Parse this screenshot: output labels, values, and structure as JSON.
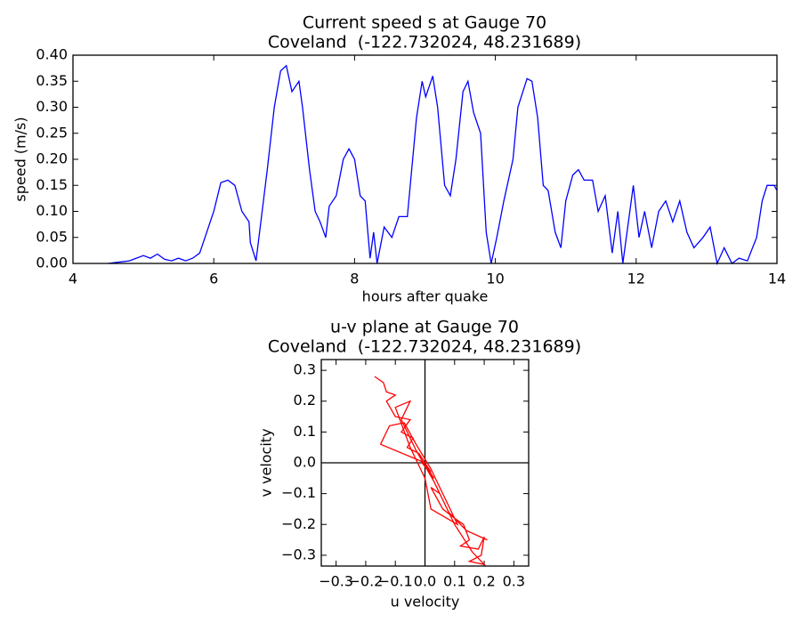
{
  "chart_data": [
    {
      "type": "line",
      "title": "Current speed s at Gauge 70",
      "subtitle": "Coveland  (-122.732024, 48.231689)",
      "x_label": "hours after quake",
      "y_label": "speed (m/s)",
      "color": "#0000ff",
      "xlim": [
        4,
        14
      ],
      "ylim": [
        0,
        0.4
      ],
      "xticks": [
        4,
        6,
        8,
        10,
        12,
        14
      ],
      "yticks": [
        {
          "value": 0,
          "label": "0.00"
        },
        0.05,
        {
          "value": 0.1,
          "label": "0.10"
        },
        0.15,
        {
          "value": 0.2,
          "label": "0.20"
        },
        0.25,
        {
          "value": 0.3,
          "label": "0.30"
        },
        0.35,
        {
          "value": 0.4,
          "label": "0.40"
        }
      ],
      "x": [
        4.5,
        4.8,
        4.9,
        5.0,
        5.1,
        5.2,
        5.3,
        5.4,
        5.5,
        5.6,
        5.7,
        5.8,
        5.9,
        6.0,
        6.1,
        6.2,
        6.3,
        6.4,
        6.5,
        6.52,
        6.6,
        6.76,
        6.86,
        6.95,
        7.03,
        7.11,
        7.21,
        7.26,
        7.36,
        7.44,
        7.51,
        7.59,
        7.64,
        7.74,
        7.84,
        7.92,
        8.0,
        8.08,
        8.15,
        8.22,
        8.27,
        8.32,
        8.42,
        8.53,
        8.63,
        8.75,
        8.88,
        8.96,
        9.01,
        9.11,
        9.18,
        9.28,
        9.36,
        9.44,
        9.54,
        9.61,
        9.69,
        9.79,
        9.87,
        9.94,
        10.02,
        10.12,
        10.25,
        10.32,
        10.45,
        10.52,
        10.6,
        10.68,
        10.75,
        10.85,
        10.93,
        11.0,
        11.1,
        11.18,
        11.26,
        11.38,
        11.46,
        11.56,
        11.66,
        11.74,
        11.81,
        11.89,
        11.96,
        12.04,
        12.12,
        12.22,
        12.32,
        12.42,
        12.52,
        12.62,
        12.72,
        12.82,
        12.95,
        13.05,
        13.15,
        13.25,
        13.36,
        13.46,
        13.58,
        13.71,
        13.79,
        13.86,
        13.96,
        14.0
      ],
      "values": [
        0,
        0.005,
        0.01,
        0.015,
        0.01,
        0.018,
        0.008,
        0.005,
        0.01,
        0.005,
        0.01,
        0.02,
        0.06,
        0.1,
        0.155,
        0.16,
        0.15,
        0.1,
        0.08,
        0.04,
        0.005,
        0.18,
        0.3,
        0.37,
        0.38,
        0.33,
        0.35,
        0.3,
        0.18,
        0.1,
        0.08,
        0.05,
        0.11,
        0.13,
        0.2,
        0.22,
        0.2,
        0.13,
        0.12,
        0.01,
        0.06,
        0.0,
        0.07,
        0.05,
        0.09,
        0.09,
        0.28,
        0.35,
        0.32,
        0.36,
        0.3,
        0.15,
        0.13,
        0.2,
        0.33,
        0.35,
        0.29,
        0.25,
        0.06,
        0.0,
        0.05,
        0.12,
        0.2,
        0.3,
        0.355,
        0.35,
        0.28,
        0.15,
        0.14,
        0.06,
        0.03,
        0.12,
        0.17,
        0.18,
        0.16,
        0.16,
        0.1,
        0.13,
        0.02,
        0.1,
        0.0,
        0.08,
        0.15,
        0.05,
        0.1,
        0.03,
        0.1,
        0.12,
        0.08,
        0.12,
        0.06,
        0.03,
        0.05,
        0.07,
        0.0,
        0.03,
        0.0,
        0.01,
        0.005,
        0.05,
        0.12,
        0.15,
        0.15,
        0.14
      ]
    },
    {
      "type": "line",
      "title": "u-v plane at Gauge 70",
      "subtitle": "Coveland  (-122.732024, 48.231689)",
      "x_label": "u velocity",
      "y_label": "v velocity",
      "color": "#ff0000",
      "xlim": [
        -0.35,
        0.35
      ],
      "ylim": [
        -0.335,
        0.335
      ],
      "hlines": [
        0
      ],
      "vlines": [
        0
      ],
      "xticks": [
        {
          "value": -0.3,
          "label": "−0.3"
        },
        {
          "value": -0.2,
          "label": "−0.2"
        },
        {
          "value": -0.1,
          "label": "−0.1"
        },
        {
          "value": 0,
          "label": "0.0"
        },
        0.1,
        0.2,
        0.3
      ],
      "yticks": [
        {
          "value": -0.3,
          "label": "−0.3"
        },
        {
          "value": -0.2,
          "label": "−0.2"
        },
        {
          "value": -0.1,
          "label": "−0.1"
        },
        {
          "value": 0,
          "label": "0.0"
        },
        0.1,
        0.2,
        0.3
      ],
      "x": [
        -0.17,
        -0.14,
        -0.13,
        -0.1,
        -0.13,
        -0.1,
        -0.05,
        -0.08,
        -0.04,
        -0.06,
        -0.02,
        0.0,
        0.02,
        -0.01,
        0.03,
        0.01,
        0.05,
        0.02,
        0.06,
        0.1,
        0.13,
        0.15,
        0.12,
        0.18,
        0.2,
        0.19,
        0.15,
        0.2,
        0.16,
        0.1,
        0.05,
        0.0,
        -0.15,
        -0.12,
        -0.07,
        -0.03,
        0.02,
        0.07,
        0.11,
        0.02,
        0.0,
        -0.05,
        -0.1,
        -0.05,
        -0.08,
        -0.03,
        0.03,
        0.08,
        0.14,
        0.21
      ],
      "values": [
        0.28,
        0.26,
        0.23,
        0.22,
        0.2,
        0.15,
        0.14,
        0.1,
        0.08,
        0.05,
        0.03,
        0.0,
        -0.03,
        0.0,
        -0.05,
        -0.02,
        -0.1,
        -0.08,
        -0.15,
        -0.18,
        -0.2,
        -0.25,
        -0.27,
        -0.28,
        -0.24,
        -0.3,
        -0.32,
        -0.33,
        -0.29,
        -0.2,
        -0.1,
        0.0,
        0.06,
        0.12,
        0.13,
        0.06,
        -0.02,
        -0.12,
        -0.2,
        -0.15,
        -0.05,
        0.05,
        0.18,
        0.2,
        0.14,
        0.04,
        -0.06,
        -0.16,
        -0.22,
        -0.25
      ]
    }
  ]
}
